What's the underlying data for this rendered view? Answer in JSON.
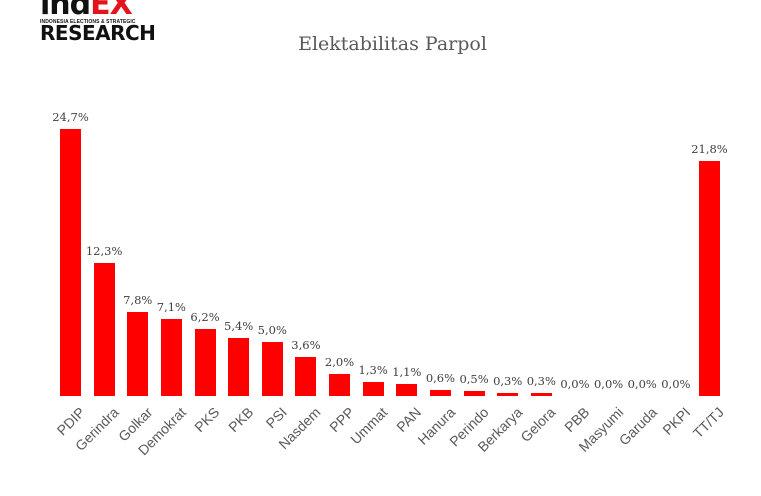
{
  "logo": {
    "line1_dark": "ind",
    "line1_red": "EX",
    "tagline": "INDONESIA ELECTIONS & STRATEGIC",
    "line2": "RESEARCH"
  },
  "title": "Elektabilitas Parpol",
  "colors": {
    "bar": "#ff0000",
    "label": "#404040",
    "axis_text": "#595959"
  },
  "chart_data": {
    "type": "bar",
    "title": "Elektabilitas Parpol",
    "xlabel": "",
    "ylabel": "",
    "ylim": [
      0,
      25
    ],
    "grid": false,
    "legend": null,
    "categories": [
      "PDIP",
      "Gerindra",
      "Golkar",
      "Demokrat",
      "PKS",
      "PKB",
      "PSI",
      "Nasdem",
      "PPP",
      "Ummat",
      "PAN",
      "Hanura",
      "Perindo",
      "Berkarya",
      "Gelora",
      "PBB",
      "Masyumi",
      "Garuda",
      "PKPI",
      "TT/TJ"
    ],
    "values": [
      24.7,
      12.3,
      7.8,
      7.1,
      6.2,
      5.4,
      5.0,
      3.6,
      2.0,
      1.3,
      1.1,
      0.6,
      0.5,
      0.3,
      0.3,
      0.0,
      0.0,
      0.0,
      0.0,
      21.8
    ],
    "value_labels": [
      "24,7%",
      "12,3%",
      "7,8%",
      "7,1%",
      "6,2%",
      "5,4%",
      "5,0%",
      "3,6%",
      "2,0%",
      "1,3%",
      "1,1%",
      "0,6%",
      "0,5%",
      "0,3%",
      "0,3%",
      "0,0%",
      "0,0%",
      "0,0%",
      "0,0%",
      "21,8%"
    ]
  }
}
